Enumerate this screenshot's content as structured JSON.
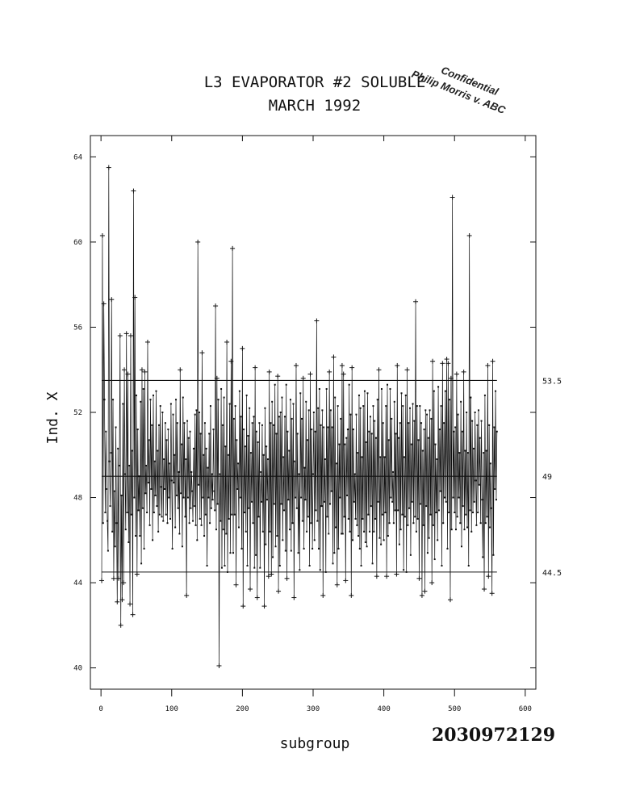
{
  "chart_data": {
    "type": "line",
    "title": "L3 EVAPORATOR #2 SOLUBLE",
    "subtitle": "MARCH 1992",
    "xlabel": "subgroup",
    "ylabel": "Ind. X",
    "xlim": [
      -15,
      615
    ],
    "ylim": [
      39,
      65
    ],
    "x_ticks": [
      0,
      100,
      200,
      300,
      400,
      500,
      600
    ],
    "y_ticks": [
      40,
      44,
      48,
      52,
      56,
      60,
      64
    ],
    "reference_lines": [
      {
        "name": "UCL",
        "value": 53.5,
        "label": "53.5"
      },
      {
        "name": "CL",
        "value": 49,
        "label": "49"
      },
      {
        "name": "LCL",
        "value": 44.5,
        "label": "44.5"
      }
    ],
    "x_start": 1,
    "x_step": 1,
    "values": [
      44.1,
      60.3,
      46.8,
      57.1,
      52.6,
      47.3,
      51.1,
      48.4,
      46.9,
      45.5,
      63.5,
      49.7,
      47.6,
      50.1,
      57.3,
      46.4,
      52.6,
      44.2,
      48.3,
      45.7,
      51.3,
      46.8,
      43.1,
      50.3,
      44.2,
      49.5,
      55.6,
      42.0,
      48.1,
      43.2,
      52.4,
      44.0,
      54.0,
      49.1,
      46.5,
      55.7,
      47.3,
      53.8,
      45.9,
      49.5,
      43.0,
      55.6,
      47.2,
      50.2,
      42.5,
      62.4,
      48.0,
      57.4,
      46.2,
      52.8,
      44.4,
      51.2,
      47.4,
      49.0,
      46.2,
      52.5,
      44.9,
      54.0,
      47.5,
      53.1,
      45.6,
      53.9,
      48.2,
      49.5,
      47.3,
      55.3,
      48.7,
      50.7,
      46.7,
      52.6,
      48.4,
      51.4,
      46.0,
      52.8,
      47.3,
      49.7,
      48.1,
      53.0,
      47.6,
      50.2,
      46.4,
      51.4,
      47.2,
      52.3,
      48.5,
      47.1,
      52.0,
      46.9,
      49.8,
      48.4,
      51.5,
      47.2,
      50.7,
      46.8,
      51.2,
      48.0,
      49.6,
      47.0,
      52.4,
      48.8,
      45.6,
      51.9,
      48.7,
      50.0,
      46.6,
      52.6,
      48.1,
      51.5,
      47.5,
      49.2,
      46.3,
      54.0,
      48.2,
      50.5,
      45.7,
      52.7,
      48.0,
      51.5,
      47.1,
      49.8,
      43.4,
      51.6,
      48.0,
      50.8,
      46.8,
      51.1,
      47.5,
      49.2,
      48.3,
      46.9,
      50.3,
      47.6,
      51.9,
      46.7,
      52.1,
      46.0,
      60.0,
      48.6,
      52.0,
      47.0,
      51.0,
      46.7,
      54.8,
      48.0,
      50.0,
      46.2,
      51.5,
      47.2,
      50.3,
      44.8,
      49.4,
      48.0,
      51.0,
      46.8,
      52.3,
      47.5,
      49.1,
      47.9,
      51.2,
      48.3,
      47.4,
      57.0,
      46.5,
      53.6,
      47.7,
      52.6,
      40.1,
      49.1,
      46.9,
      53.1,
      44.7,
      51.4,
      46.5,
      52.7,
      44.8,
      50.4,
      46.3,
      55.3,
      44.5,
      50.0,
      47.0,
      52.4,
      45.4,
      54.4,
      47.2,
      59.7,
      45.4,
      51.7,
      47.2,
      52.3,
      43.9,
      50.7,
      48.4,
      49.6,
      46.6,
      53.0,
      48.0,
      51.8,
      45.6,
      55.0,
      42.9,
      51.2,
      47.3,
      50.4,
      46.4,
      52.8,
      44.8,
      50.9,
      47.5,
      52.2,
      43.7,
      50.1,
      47.8,
      51.5,
      46.8,
      51.8,
      44.7,
      54.1,
      45.3,
      51.1,
      43.3,
      50.6,
      47.1,
      51.5,
      44.7,
      49.2,
      47.8,
      51.4,
      46.4,
      50.0,
      42.9,
      52.2,
      45.8,
      50.4,
      47.9,
      49.8,
      44.3,
      53.9,
      46.4,
      51.5,
      44.4,
      52.5,
      45.2,
      51.4,
      47.7,
      53.3,
      45.7,
      51.0,
      46.2,
      53.7,
      43.6,
      51.8,
      44.8,
      52.0,
      47.7,
      52.7,
      46.0,
      49.9,
      47.4,
      51.8,
      45.5,
      53.3,
      44.2,
      51.1,
      47.9,
      50.2,
      46.5,
      52.6,
      45.5,
      51.7,
      46.8,
      52.4,
      43.3,
      49.7,
      48.0,
      54.2,
      47.5,
      51.0,
      45.4,
      49.1,
      44.6,
      52.9,
      48.0,
      51.7,
      46.9,
      53.6,
      45.6,
      49.4,
      47.9,
      52.5,
      46.4,
      50.7,
      47.1,
      52.1,
      44.8,
      53.8,
      46.8,
      51.2,
      45.6,
      49.1,
      52.0,
      46.0,
      51.1,
      47.4,
      56.3,
      46.9,
      52.2,
      45.6,
      53.1,
      44.6,
      51.4,
      47.6,
      52.1,
      43.4,
      51.3,
      47.8,
      49.8,
      44.5,
      53.1,
      47.1,
      51.3,
      46.3,
      53.9,
      47.7,
      52.1,
      48.3,
      51.3,
      44.9,
      54.6,
      45.4,
      52.7,
      46.6,
      49.6,
      43.9,
      52.3,
      45.6,
      50.5,
      48.0,
      51.7,
      46.3,
      54.2,
      46.3,
      53.8,
      47.1,
      50.5,
      44.1,
      50.8,
      48.1,
      51.2,
      47.0,
      53.3,
      46.4,
      51.9,
      43.4,
      54.1,
      46.0,
      51.2,
      47.8,
      49.1,
      47.0,
      51.9,
      46.7,
      50.1,
      46.2,
      52.8,
      45.6,
      52.2,
      44.8,
      49.9,
      47.0,
      52.3,
      46.4,
      53.0,
      45.9,
      50.6,
      45.7,
      52.9,
      47.2,
      51.1,
      46.4,
      51.8,
      47.6,
      51.0,
      44.9,
      52.3,
      46.4,
      51.6,
      47.0,
      50.8,
      44.3,
      52.6,
      47.8,
      54.0,
      46.1,
      49.9,
      45.8,
      53.1,
      47.2,
      51.5,
      46.0,
      49.9,
      47.3,
      52.3,
      44.3,
      53.3,
      46.2,
      50.7,
      46.8,
      53.1,
      48.0,
      51.7,
      47.8,
      49.2,
      46.8,
      52.5,
      47.4,
      51.0,
      44.4,
      54.2,
      47.4,
      50.8,
      45.8,
      51.5,
      46.5,
      52.9,
      47.2,
      52.3,
      44.6,
      49.9,
      47.1,
      52.8,
      44.5,
      54.0,
      46.7,
      51.5,
      47.5,
      52.2,
      45.3,
      50.5,
      47.8,
      52.4,
      46.8,
      51.6,
      47.1,
      57.2,
      46.4,
      52.3,
      47.0,
      50.7,
      44.2,
      52.3,
      47.7,
      51.5,
      43.4,
      50.2,
      46.7,
      51.2,
      43.6,
      52.1,
      47.6,
      51.9,
      45.4,
      50.8,
      46.1,
      52.1,
      47.2,
      51.7,
      44.0,
      54.4,
      46.7,
      53.0,
      45.1,
      50.5,
      47.3,
      49.8,
      46.0,
      53.2,
      47.4,
      51.2,
      48.3,
      52.3,
      44.8,
      54.3,
      46.8,
      51.5,
      48.0,
      53.0,
      47.8,
      54.5,
      45.6,
      54.3,
      47.3,
      52.6,
      43.2,
      53.6,
      46.5,
      62.1,
      48.0,
      51.1,
      47.3,
      51.3,
      46.5,
      53.8,
      47.1,
      51.9,
      48.0,
      50.1,
      46.8,
      52.5,
      45.7,
      51.1,
      47.6,
      53.9,
      46.5,
      50.2,
      47.2,
      52.0,
      46.6,
      50.1,
      44.8,
      60.3,
      47.4,
      52.7,
      46.4,
      51.6,
      47.3,
      50.3,
      47.8,
      52.0,
      48.8,
      46.7,
      51.4,
      47.3,
      52.1,
      48.6,
      50.8,
      46.8,
      51.6,
      47.9,
      45.2,
      50.1,
      43.7,
      52.8,
      46.8,
      50.2,
      47.1,
      54.2,
      44.3,
      51.4,
      46.6,
      49.6,
      47.5,
      43.5,
      54.4,
      45.3,
      51.3,
      48.4,
      53.0,
      47.9,
      51.1
    ],
    "grid": false,
    "legend": "none"
  },
  "annotations": {
    "document_number": "2030972129",
    "stamp_line1": "Confidential",
    "stamp_line2": "Philip Morris v. ABC"
  },
  "colors": {
    "ink": "#111111",
    "background": "#ffffff"
  }
}
